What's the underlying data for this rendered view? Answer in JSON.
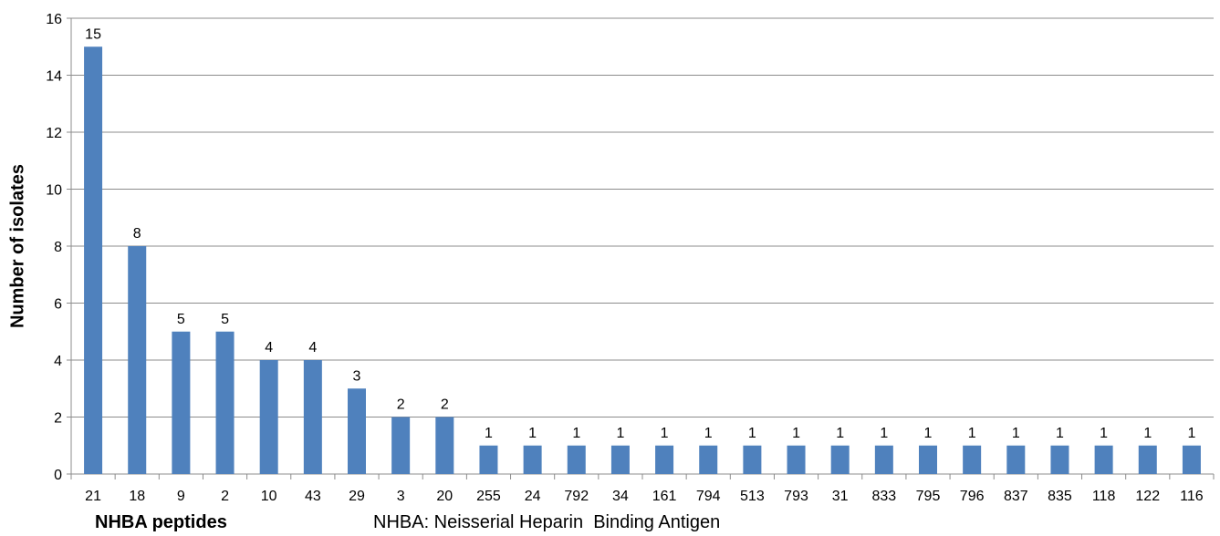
{
  "chart_data": {
    "type": "bar",
    "title": "",
    "xlabel": "NHBA peptides",
    "ylabel": "Number of isolates",
    "note": "NHBA: Neisserial Heparin  Binding Antigen",
    "ylim": [
      0,
      16
    ],
    "yticks": [
      0,
      2,
      4,
      6,
      8,
      10,
      12,
      14,
      16
    ],
    "grid": true,
    "bar_color": "#4F81BD",
    "categories": [
      "21",
      "18",
      "9",
      "2",
      "10",
      "43",
      "29",
      "3",
      "20",
      "255",
      "24",
      "792",
      "34",
      "161",
      "794",
      "513",
      "793",
      "31",
      "833",
      "795",
      "796",
      "837",
      "835",
      "118",
      "122",
      "116"
    ],
    "values": [
      15,
      8,
      5,
      5,
      4,
      4,
      3,
      2,
      2,
      1,
      1,
      1,
      1,
      1,
      1,
      1,
      1,
      1,
      1,
      1,
      1,
      1,
      1,
      1,
      1,
      1
    ]
  }
}
